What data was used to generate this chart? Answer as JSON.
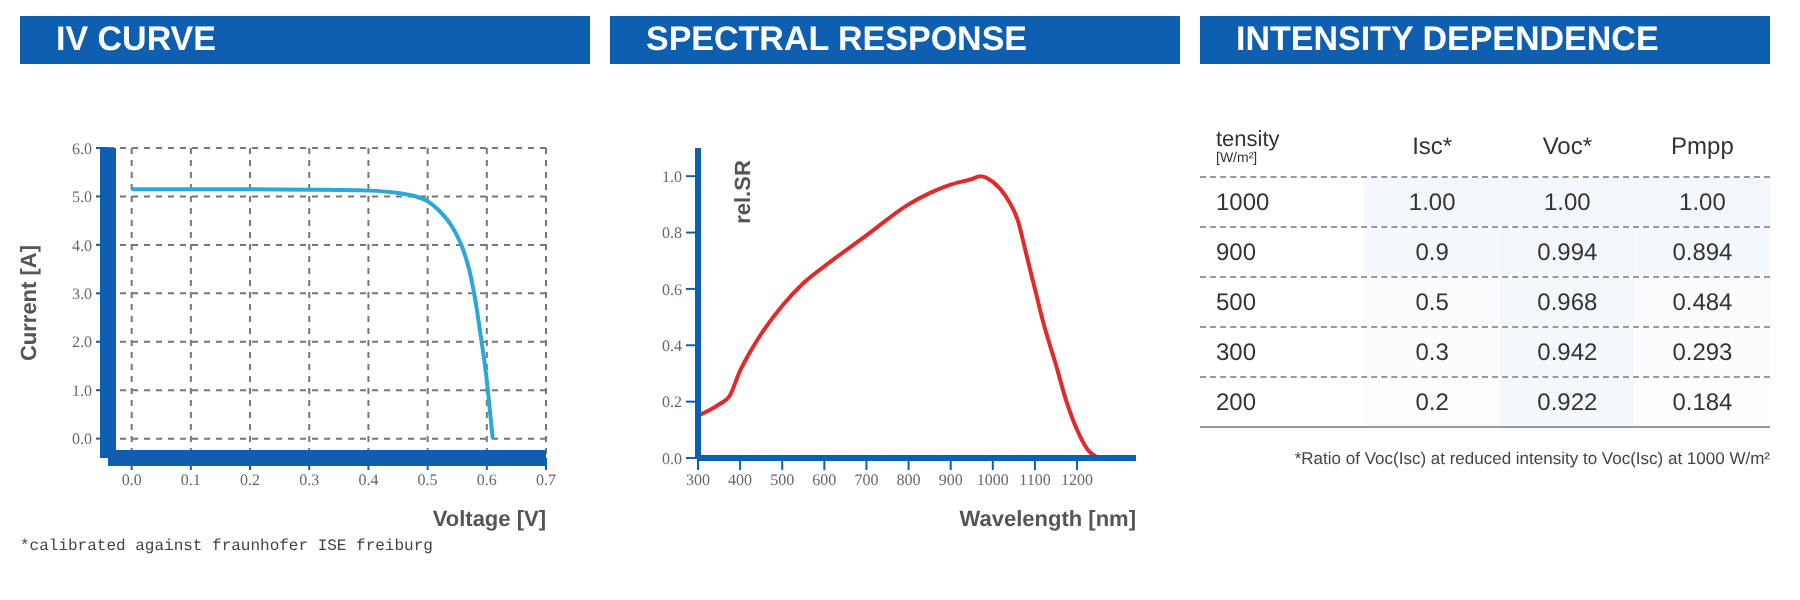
{
  "chart_data": [
    {
      "type": "line",
      "title": "IV CURVE",
      "xlabel": "Voltage [V]",
      "ylabel": "Current [A]",
      "x": [
        0,
        0.1,
        0.2,
        0.3,
        0.4,
        0.45,
        0.48,
        0.5,
        0.52,
        0.54,
        0.56,
        0.57,
        0.58,
        0.59,
        0.6,
        0.605,
        0.61
      ],
      "series": [
        {
          "color": "#2aa9d9",
          "values": [
            5.15,
            5.15,
            5.15,
            5.14,
            5.12,
            5.07,
            5.0,
            4.9,
            4.7,
            4.4,
            3.9,
            3.5,
            2.9,
            2.1,
            1.2,
            0.6,
            0
          ]
        }
      ],
      "xlim": [
        -0.04,
        0.7
      ],
      "ylim": [
        -0.4,
        6.0
      ],
      "xticks": [
        {
          "value": 0,
          "label": "0.0"
        },
        0.1,
        0.2,
        0.3,
        0.4,
        0.5,
        0.6,
        0.7
      ],
      "yticks": [
        {
          "value": 0,
          "label": "0.0"
        },
        {
          "value": 1,
          "label": "1.0"
        },
        {
          "value": 2,
          "label": "2.0"
        },
        {
          "value": 3,
          "label": "3.0"
        },
        {
          "value": 4,
          "label": "4.0"
        },
        {
          "value": 5,
          "label": "5.0"
        },
        {
          "value": 6,
          "label": "6.0"
        }
      ],
      "grid": true,
      "marker": "none",
      "line_style": "solid",
      "annotations": [
        "*calibrated against fraunhofer ISE freiburg"
      ]
    },
    {
      "type": "line",
      "title": "SPECTRAL RESPONSE",
      "xlabel": "Wavelength [nm]",
      "ylabel": "rel.SR",
      "x": [
        300,
        350,
        375,
        400,
        425,
        450,
        500,
        550,
        600,
        700,
        800,
        850,
        900,
        950,
        970,
        1000,
        1030,
        1060,
        1080,
        1100,
        1120,
        1150,
        1175,
        1200,
        1225,
        1250
      ],
      "series": [
        {
          "color": "#e02b2b",
          "values": [
            0.15,
            0.19,
            0.22,
            0.31,
            0.38,
            0.44,
            0.54,
            0.62,
            0.68,
            0.79,
            0.9,
            0.94,
            0.97,
            0.99,
            1.0,
            0.98,
            0.93,
            0.84,
            0.72,
            0.6,
            0.48,
            0.33,
            0.2,
            0.1,
            0.03,
            0
          ]
        }
      ],
      "xlim": [
        300,
        1340
      ],
      "ylim": [
        0,
        1.1
      ],
      "xticks": [
        300,
        400,
        500,
        600,
        700,
        800,
        900,
        1000,
        1100,
        1200
      ],
      "yticks": [
        {
          "value": 0,
          "label": "0.0"
        },
        0.2,
        0.4,
        0.6,
        0.8,
        {
          "value": 1,
          "label": "1.0"
        }
      ],
      "marker": "none",
      "line_style": "solid"
    },
    {
      "type": "heatmap",
      "title": "INTENSITY DEPENDENCE",
      "ylabel": "tensity [W/m²]",
      "categories": [
        "Isc*",
        "Voc*",
        "Pmpp"
      ],
      "y_categories": [
        "1000",
        "900",
        "500",
        "300",
        "200"
      ],
      "cells": [
        [
          1,
          1,
          1
        ],
        [
          0.9,
          0.994,
          0.894
        ],
        [
          0.5,
          0.968,
          0.484
        ],
        [
          0.3,
          0.942,
          0.293
        ],
        [
          0.2,
          0.922,
          0.184
        ]
      ],
      "cell_labels": [
        [
          "1.00",
          "1.00",
          "1.00"
        ],
        [
          "0.9",
          "0.994",
          "0.894"
        ],
        [
          "0.5",
          "0.968",
          "0.484"
        ],
        [
          "0.3",
          "0.942",
          "0.293"
        ],
        [
          "0.2",
          "0.922",
          "0.184"
        ]
      ],
      "annotations": [
        "*Ratio of Voc(Isc) at reduced intensity to Voc(Isc) at 1000 W/m²"
      ]
    }
  ]
}
